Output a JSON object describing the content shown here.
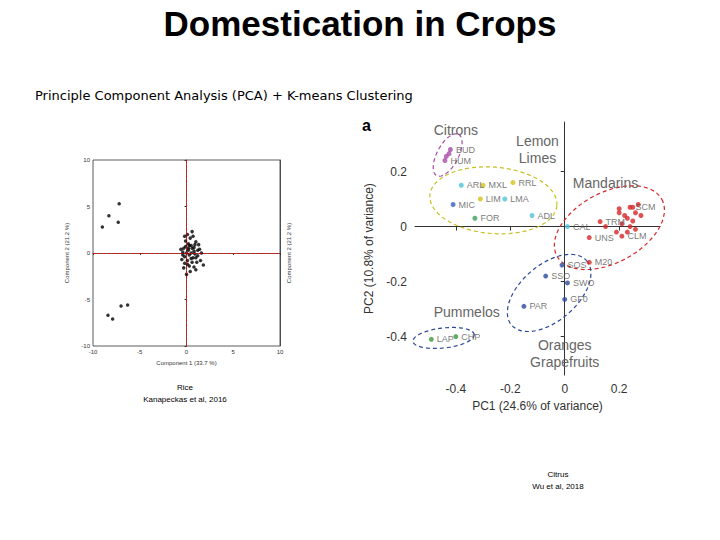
{
  "title": "Domestication in Crops",
  "subtitle": "Principle Component Analysis (PCA) + K-means Clustering",
  "chart_data": [
    {
      "type": "scatter",
      "caption": [
        "Rice",
        "Kanapeckas et al, 2016"
      ],
      "x_label": "Component 1 (33.7 %)",
      "y_label": "Component 2 (21.2 %)",
      "xlim": [
        -10,
        10
      ],
      "xticks": [
        -10,
        -5,
        0,
        5,
        10
      ],
      "ylim": [
        -10,
        10
      ],
      "yticks": [
        -10,
        -5,
        0,
        5,
        10
      ],
      "grid": false,
      "reference_lines": [
        {
          "axis": "x",
          "value": 0,
          "color": "#ff0000",
          "line_style": "dashed"
        },
        {
          "axis": "y",
          "value": 0,
          "color": "#ff0000",
          "line_style": "dashed"
        }
      ],
      "series": [
        {
          "color": "#000000",
          "marker": "circle",
          "x": [
            0.2,
            0.5,
            -0.3,
            0.8,
            1.2,
            0.1,
            -0.2,
            0.6,
            0.9,
            -0.1,
            0.4,
            1.0,
            -0.4,
            0.3,
            0.7,
            1.4,
            0.0,
            0.5,
            -0.2,
            0.8,
            1.1,
            0.2,
            -0.5,
            1.5,
            0.6,
            0.3,
            -0.1,
            0.9,
            1.3,
            0.1,
            0.7,
            -0.3,
            0.4,
            1.0,
            0.0,
            0.6,
            1.6,
            -0.6,
            0.2,
            0.8,
            1.2,
            -0.4,
            0.5,
            0.1,
            1.0,
            0.3,
            1.8,
            -0.2,
            -7.2,
            -8.3,
            -7.3,
            -9.0,
            -7.0,
            -6.3,
            -8.4,
            -7.9
          ],
          "y": [
            0.3,
            0.8,
            0.5,
            0.2,
            -0.3,
            -0.8,
            -0.4,
            -1.0,
            0.9,
            1.3,
            1.6,
            1.2,
            0.1,
            -1.4,
            -0.5,
            0.4,
            0.0,
            0.0,
            -1.1,
            -1.5,
            -1.0,
            1.0,
            -0.7,
            -0.8,
            0.5,
            -0.2,
            0.7,
            -0.1,
            0.9,
            2.0,
            1.8,
            -1.6,
            -2.0,
            -1.8,
            -2.3,
            2.3,
            0.0,
            0.4,
            0.5,
            0.6,
            0.3,
            -0.2,
            -0.6,
            -1.2,
            -0.5,
            0.8,
            -1.3,
            1.8,
            5.3,
            4.0,
            3.3,
            2.8,
            -5.7,
            -5.6,
            -6.7,
            -7.1
          ]
        }
      ]
    },
    {
      "type": "scatter",
      "panel_label": "a",
      "caption": [
        "Citrus",
        "Wu et al, 2018"
      ],
      "x_label": "PC1 (24.6% of variance)",
      "y_label": "PC2 (10.8% of variance)",
      "xlim": [
        -0.55,
        0.35
      ],
      "xticks": [
        -0.4,
        -0.2,
        0,
        0.2
      ],
      "ylim": [
        -0.54,
        0.38
      ],
      "yticks": [
        -0.4,
        -0.2,
        0,
        0.2
      ],
      "grid": false,
      "annotations": [
        {
          "text": "Citrons",
          "x": -0.4,
          "y": 0.35
        },
        {
          "text": "Lemon\nLimes",
          "x": -0.1,
          "y": 0.28
        },
        {
          "text": "Mandarins",
          "x": 0.15,
          "y": 0.16
        },
        {
          "text": "Pummelos",
          "x": -0.36,
          "y": -0.31
        },
        {
          "text": "Oranges\nGrapefruits",
          "x": 0.0,
          "y": -0.46
        }
      ],
      "series": [
        {
          "color": "#a64ca6",
          "marker": "circle",
          "x": [
            -0.44,
            -0.42,
            -0.425,
            -0.435
          ],
          "y": [
            0.24,
            0.28,
            0.265,
            0.255
          ],
          "labels": [
            "HUM",
            "BUD",
            null,
            null
          ],
          "colors": [
            "#a64ca6",
            "#a64ca6",
            "#a64ca6",
            "#a64ca6"
          ]
        },
        {
          "color": "#c8c020",
          "marker": "circle",
          "x": [
            -0.38,
            -0.3,
            -0.19,
            -0.41,
            -0.31,
            -0.22,
            -0.33,
            -0.12
          ],
          "y": [
            0.15,
            0.15,
            0.16,
            0.08,
            0.1,
            0.1,
            0.03,
            0.04
          ],
          "labels": [
            "ARL",
            "MXL",
            "RRL",
            "MIC",
            "LIM",
            "LMA",
            "FOR",
            "ADL"
          ],
          "colors": [
            "#4cc3d9",
            "#d4c21a",
            "#d4c21a",
            "#3a5fbf",
            "#d4c21a",
            "#4cc3d9",
            "#3aa05a",
            "#4cc3d9"
          ]
        },
        {
          "color": "#d62728",
          "marker": "circle",
          "x": [
            0.24,
            0.13,
            0.21,
            0.09,
            0.01,
            0.09,
            0.2,
            0.22,
            0.25,
            0.23,
            0.26,
            0.27,
            0.21,
            0.24,
            0.25,
            0.23,
            0.19,
            0.26,
            0.2,
            0.15,
            0.28
          ],
          "y": [
            0.07,
            0.018,
            -0.035,
            -0.04,
            0.0,
            -0.13,
            0.05,
            0.04,
            0.07,
            0.03,
            0.05,
            0.08,
            0.01,
            0.0,
            0.02,
            -0.02,
            -0.02,
            -0.01,
            0.065,
            0.0,
            0.04
          ],
          "labels": [
            "SCM",
            "TRM",
            "CLM",
            "UNS",
            "CAL",
            "M20",
            null,
            null,
            null,
            null,
            null,
            null,
            null,
            null,
            null,
            null,
            null,
            null,
            null,
            null,
            null
          ],
          "colors": [
            "#d62728",
            "#d62728",
            "#d62728",
            "#d62728",
            "#4cc3d9",
            "#d62728",
            "#d62728",
            "#d62728",
            "#d62728",
            "#d62728",
            "#d62728",
            "#d62728",
            "#d62728",
            "#d62728",
            "#d62728",
            "#d62728",
            "#d62728",
            "#d62728",
            "#d62728",
            "#d62728",
            "#d62728"
          ]
        },
        {
          "color": "#2c4a9a",
          "marker": "circle",
          "x": [
            -0.01,
            -0.07,
            0.01,
            0.0,
            -0.15
          ],
          "y": [
            -0.14,
            -0.18,
            -0.205,
            -0.265,
            -0.29
          ],
          "labels": [
            "SOS",
            "SSO",
            "SWO",
            "GF0",
            "PAR"
          ],
          "colors": [
            "#2c4a9a",
            "#2c4a9a",
            "#2c4a9a",
            "#2c4a9a",
            "#2c4a9a"
          ]
        },
        {
          "color": "#2c4a9a",
          "marker": "circle",
          "x": [
            -0.49,
            -0.4
          ],
          "y": [
            -0.41,
            -0.4
          ],
          "labels": [
            "LAP",
            "CHP"
          ],
          "colors": [
            "#3a9a3a",
            "#3a9a3a"
          ]
        }
      ]
    }
  ]
}
